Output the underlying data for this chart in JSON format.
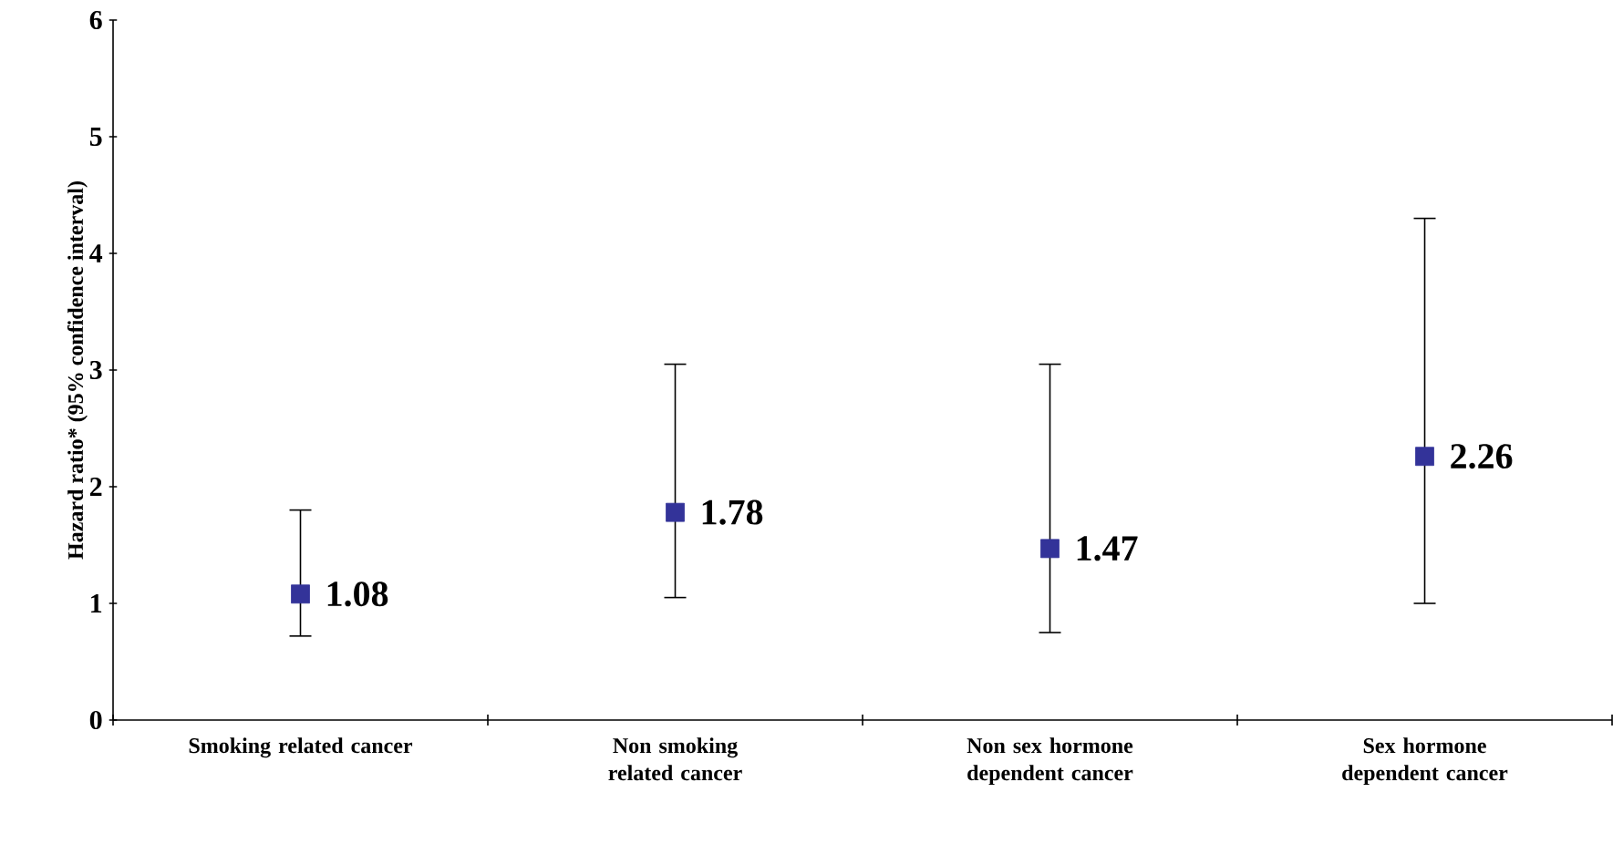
{
  "chart_data": {
    "type": "scatter",
    "ylabel": "Hazard ratio* (95%  confidence interval)",
    "categories": [
      "Smoking related cancer",
      "Non smoking related cancer",
      "Non sex hormone dependent cancer",
      "Sex hormone dependent cancer"
    ],
    "series": [
      {
        "color": "#333399",
        "values": [
          1.08,
          1.78,
          1.47,
          2.26
        ],
        "errors": [
          [
            0.72,
            1.8
          ],
          [
            1.05,
            3.05
          ],
          [
            0.75,
            3.05
          ],
          [
            1.0,
            4.3
          ]
        ],
        "value_labels": [
          "1.08",
          "1.78",
          "1.47",
          "2.26"
        ]
      }
    ],
    "marker": "square",
    "ylim": [
      0,
      6
    ],
    "yticks": [
      0,
      1,
      2,
      3,
      4,
      5,
      6
    ],
    "grid": false
  }
}
